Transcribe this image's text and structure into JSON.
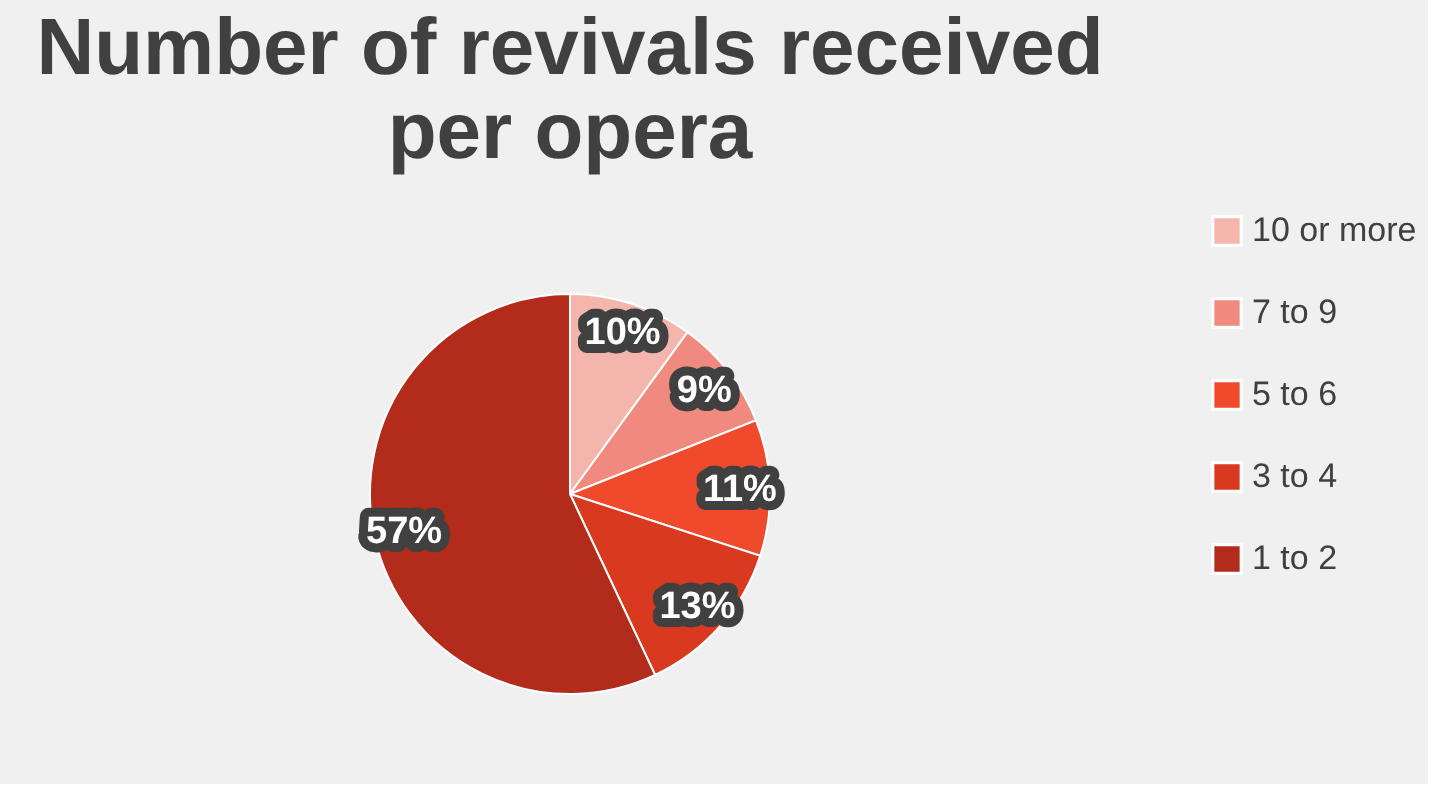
{
  "chart_data": {
    "type": "pie",
    "title": [
      "Number of revivals received",
      "per opera"
    ],
    "categories": [
      "10 or more",
      "7 to 9",
      "5 to 6",
      "3 to 4",
      "1 to 2"
    ],
    "values": [
      10,
      9,
      11,
      13,
      57
    ],
    "colors": [
      "#f4b5ad",
      "#f08a7e",
      "#ef4a2b",
      "#d8391f",
      "#b32b1b"
    ],
    "value_labels": [
      "10%",
      "9%",
      "11%",
      "13%",
      "57%"
    ],
    "legend": "right"
  }
}
